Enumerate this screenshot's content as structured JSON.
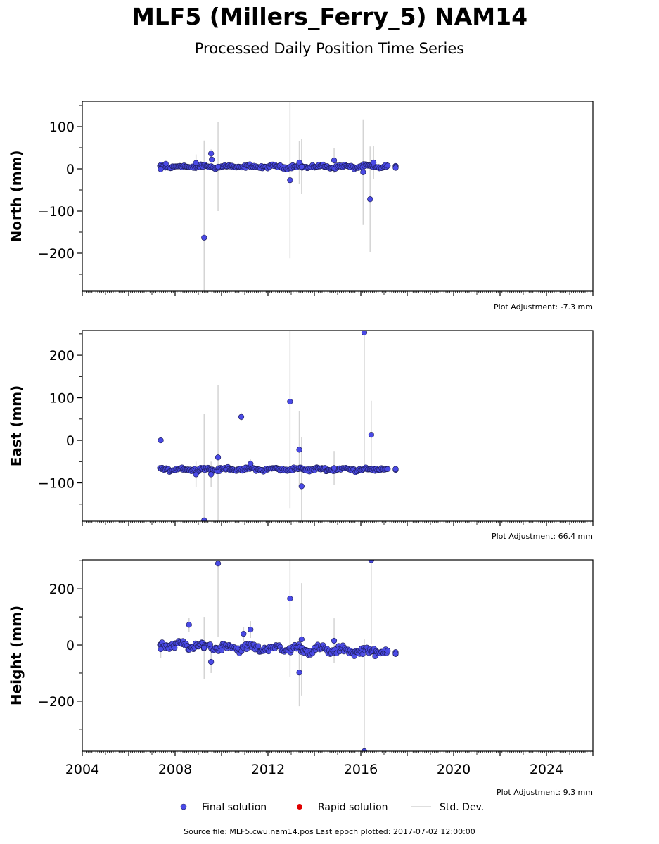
{
  "header": {
    "title": "MLF5 (Millers_Ferry_5) NAM14",
    "subtitle": "Processed Daily Position Time Series"
  },
  "footer": {
    "source": "Source file: MLF5.cwu.nam14.pos  Last epoch plotted: 2017-07-02 12:00:00"
  },
  "legend": {
    "final": "Final solution",
    "rapid": "Rapid solution",
    "stddev": "Std. Dev."
  },
  "colors": {
    "final": "#4a4ae6",
    "final_edge": "#1a1a50",
    "rapid": "#e00000",
    "stddev": "#d4d4d4"
  },
  "chart_data": [
    {
      "type": "scatter",
      "ylabel": "North (mm)",
      "adjustment": "Plot Adjustment: -7.3 mm",
      "xlim": [
        2004.0,
        2026.0
      ],
      "ylim": [
        -290,
        160
      ],
      "yticks": [
        100,
        0,
        -100,
        -200
      ],
      "ytick_labels": [
        "100",
        "0",
        "−100",
        "−200"
      ],
      "baseline": 5,
      "noise": 3,
      "trend": 0,
      "points": [
        {
          "x": 2007.38,
          "y": -1,
          "err": 5
        },
        {
          "x": 2007.6,
          "y": 12,
          "err": 6
        },
        {
          "x": 2008.9,
          "y": 14,
          "err": 20
        },
        {
          "x": 2009.25,
          "y": -163,
          "err": 230
        },
        {
          "x": 2009.55,
          "y": 36,
          "err": 10
        },
        {
          "x": 2009.58,
          "y": 22,
          "err": 10
        },
        {
          "x": 2009.85,
          "y": 5,
          "err": 105
        },
        {
          "x": 2012.95,
          "y": -27,
          "err": 185
        },
        {
          "x": 2013.35,
          "y": 15,
          "err": 50
        },
        {
          "x": 2013.45,
          "y": 5,
          "err": 65
        },
        {
          "x": 2014.85,
          "y": 20,
          "err": 30
        },
        {
          "x": 2016.1,
          "y": -8,
          "err": 125
        },
        {
          "x": 2016.4,
          "y": -72,
          "err": 125
        },
        {
          "x": 2016.55,
          "y": 15,
          "err": 40
        }
      ]
    },
    {
      "type": "scatter",
      "ylabel": "East (mm)",
      "adjustment": "Plot Adjustment: 66.4 mm",
      "xlim": [
        2004.0,
        2026.0
      ],
      "ylim": [
        -190,
        258
      ],
      "yticks": [
        200,
        100,
        0,
        -100
      ],
      "ytick_labels": [
        "200",
        "100",
        "0",
        "−100"
      ],
      "baseline": -68,
      "noise": 3,
      "trend": 0,
      "points": [
        {
          "x": 2007.38,
          "y": 0,
          "err": 5
        },
        {
          "x": 2008.9,
          "y": -80,
          "err": 30
        },
        {
          "x": 2009.25,
          "y": -188,
          "err": 250
        },
        {
          "x": 2009.55,
          "y": -80,
          "err": 30
        },
        {
          "x": 2009.85,
          "y": -40,
          "err": 170
        },
        {
          "x": 2010.85,
          "y": 55,
          "err": 10
        },
        {
          "x": 2011.25,
          "y": -55,
          "err": 10
        },
        {
          "x": 2012.95,
          "y": 91,
          "err": 250
        },
        {
          "x": 2013.35,
          "y": -22,
          "err": 90
        },
        {
          "x": 2013.45,
          "y": -108,
          "err": 115
        },
        {
          "x": 2014.85,
          "y": -65,
          "err": 40
        },
        {
          "x": 2016.15,
          "y": 253,
          "err": 320
        },
        {
          "x": 2016.45,
          "y": 13,
          "err": 80
        }
      ]
    },
    {
      "type": "scatter",
      "ylabel": "Height (mm)",
      "adjustment": "Plot Adjustment: 9.3 mm",
      "xlim": [
        2004.0,
        2026.0
      ],
      "ylim": [
        -378,
        303
      ],
      "yticks": [
        200,
        0,
        -200
      ],
      "ytick_labels": [
        "200",
        "0",
        "−200"
      ],
      "baseline": 0,
      "noise": 10,
      "trend": -2.5,
      "points": [
        {
          "x": 2007.38,
          "y": -15,
          "err": 30
        },
        {
          "x": 2008.6,
          "y": 72,
          "err": 25
        },
        {
          "x": 2009.25,
          "y": -10,
          "err": 110
        },
        {
          "x": 2009.55,
          "y": -60,
          "err": 40
        },
        {
          "x": 2009.85,
          "y": 290,
          "err": 260
        },
        {
          "x": 2010.95,
          "y": 40,
          "err": 25
        },
        {
          "x": 2011.25,
          "y": 55,
          "err": 30
        },
        {
          "x": 2012.95,
          "y": 165,
          "err": 280
        },
        {
          "x": 2013.35,
          "y": -98,
          "err": 120
        },
        {
          "x": 2013.45,
          "y": 20,
          "err": 200
        },
        {
          "x": 2014.85,
          "y": 15,
          "err": 80
        },
        {
          "x": 2016.15,
          "y": -378,
          "err": 400
        },
        {
          "x": 2016.45,
          "y": 302,
          "err": 300
        }
      ]
    }
  ],
  "x_axis": {
    "ticks": [
      2004,
      2008,
      2012,
      2016,
      2020,
      2024
    ],
    "tick_labels": [
      "2004",
      "2008",
      "2012",
      "2016",
      "2020",
      "2024"
    ],
    "data_start": 2007.35,
    "data_end": 2017.2,
    "last_epoch": 2017.5
  }
}
